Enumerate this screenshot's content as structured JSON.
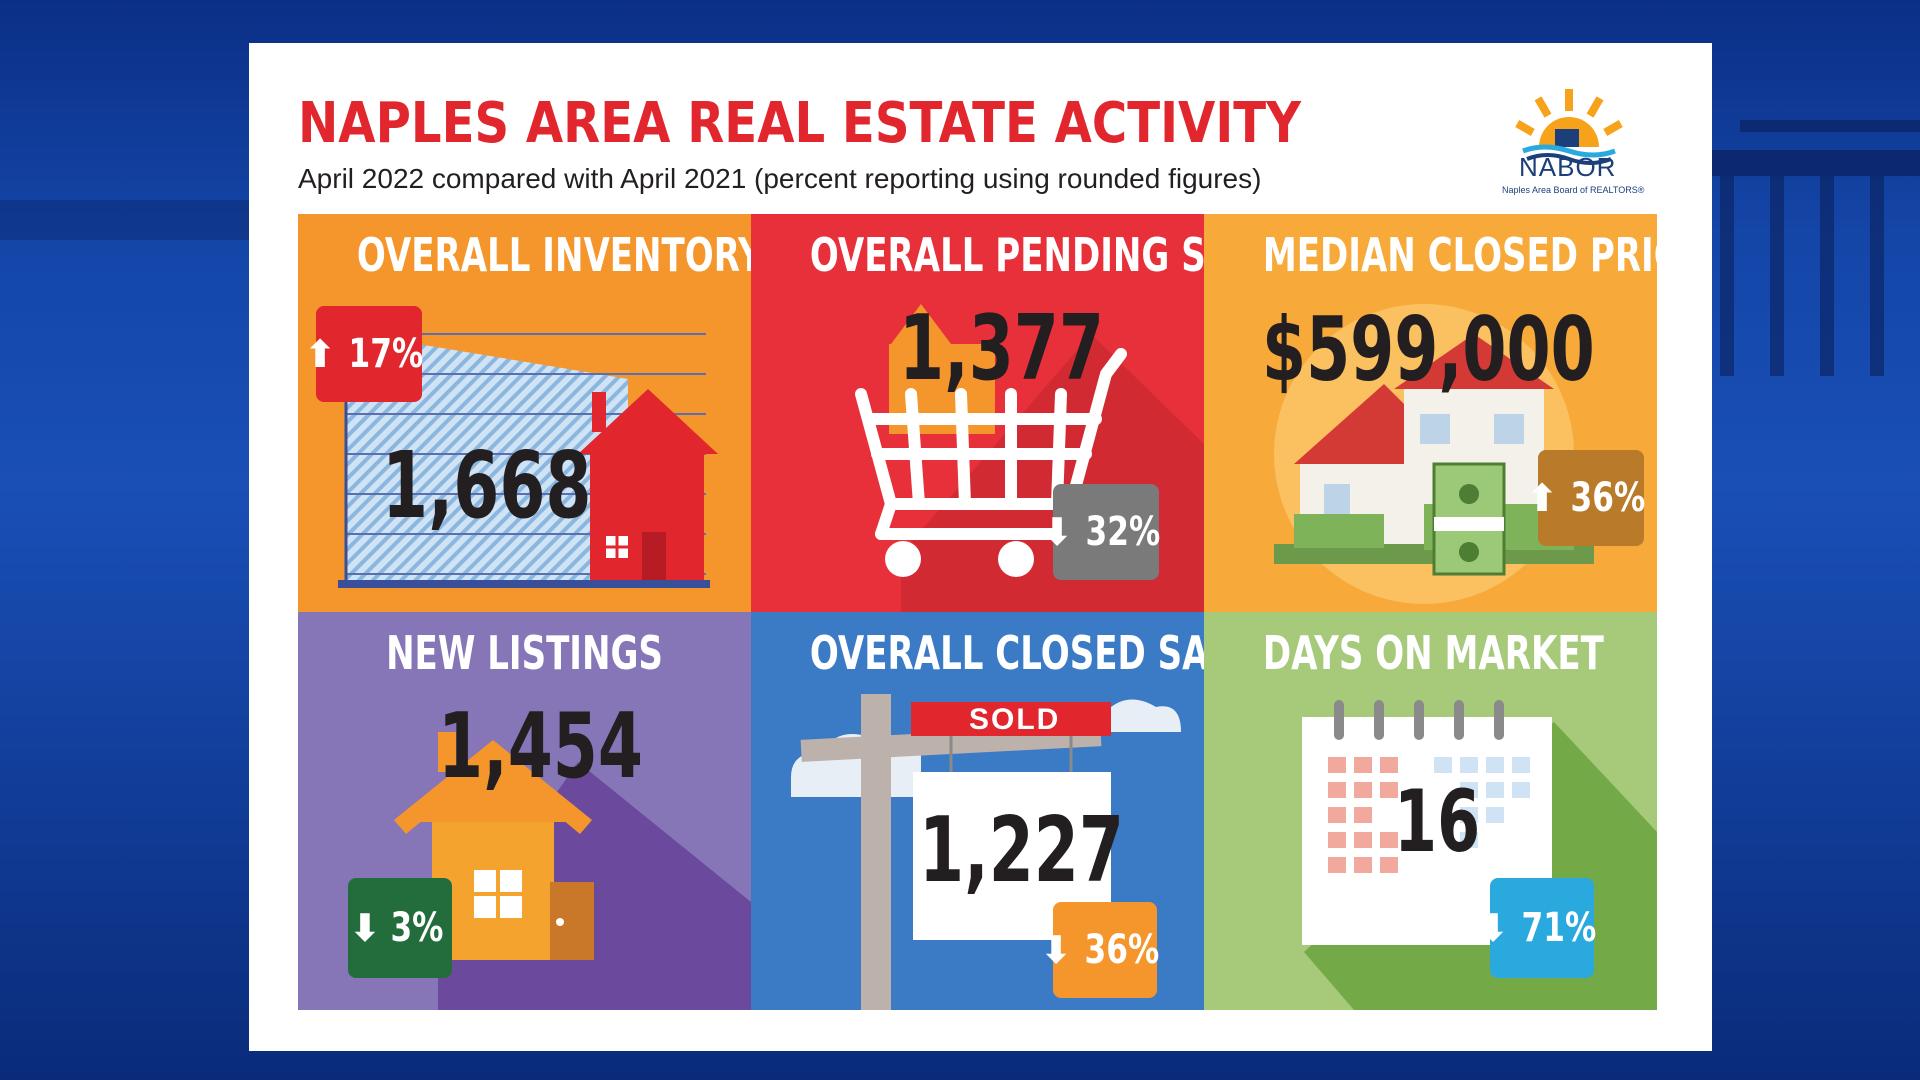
{
  "header": {
    "title": "NAPLES AREA REAL ESTATE ACTIVITY",
    "subtitle": "April 2022 compared with April 2021 (percent reporting using rounded figures)"
  },
  "logo": {
    "name": "NABOR",
    "tagline": "Naples Area Board of REALTORS®",
    "icon": "sun-house-waves-logo"
  },
  "tiles": [
    {
      "label": "OVERALL INVENTORY",
      "value": "1,668",
      "change": "17%",
      "direction": "up",
      "arrow": "⬆",
      "color": "#f5962c",
      "badge_color": "#e1262d"
    },
    {
      "label": "OVERALL PENDING SALES",
      "value": "1,377",
      "change": "32%",
      "direction": "down",
      "arrow": "⬇",
      "color": "#e7303a",
      "badge_color": "#7a7a7a"
    },
    {
      "label": "MEDIAN CLOSED PRICE",
      "value": "$599,000",
      "change": "36%",
      "direction": "up",
      "arrow": "⬆",
      "color": "#f7a93a",
      "badge_color": "#b97a2a"
    },
    {
      "label": "NEW LISTINGS",
      "value": "1,454",
      "change": "3%",
      "direction": "down",
      "arrow": "⬇",
      "color": "#8676b8",
      "badge_color": "#226d3b"
    },
    {
      "label": "OVERALL CLOSED SALES",
      "value": "1,227",
      "change": "36%",
      "direction": "down",
      "arrow": "⬇",
      "color": "#3b7bc6",
      "badge_color": "#f5962c",
      "sign_text": "SOLD"
    },
    {
      "label": "DAYS ON MARKET",
      "value": "16",
      "change": "71%",
      "direction": "down",
      "arrow": "⬇",
      "color": "#a6c97a",
      "badge_color": "#2aa9df"
    }
  ],
  "colors": {
    "title_red": "#e1262d",
    "background_blue": "#1446a8"
  }
}
